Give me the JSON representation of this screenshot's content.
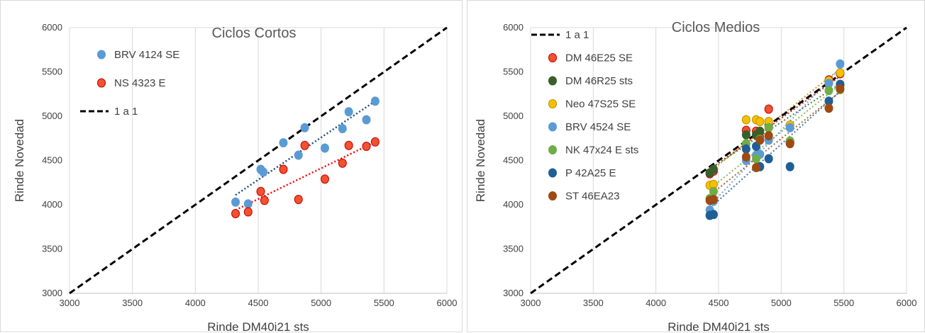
{
  "chart_data": [
    {
      "type": "scatter",
      "title": "Ciclos Cortos",
      "xlabel": "Rinde DM40i21 sts",
      "ylabel": "Rinde Novedad",
      "xlim": [
        3000,
        6000
      ],
      "ylim": [
        3000,
        6000
      ],
      "xticks": [
        3000,
        3500,
        4000,
        4500,
        5000,
        5500,
        6000
      ],
      "yticks": [
        3000,
        3500,
        4000,
        4500,
        5000,
        5500,
        6000
      ],
      "grid": "vertical",
      "legend_position": "top-left",
      "series": [
        {
          "name": "BRV 4124 SE",
          "color": "#5B9BD5",
          "stroke": "#5B9BD5",
          "points": [
            [
              4320,
              4030
            ],
            [
              4420,
              4010
            ],
            [
              4520,
              4400
            ],
            [
              4540,
              4370
            ],
            [
              4700,
              4700
            ],
            [
              4820,
              4560
            ],
            [
              4870,
              4870
            ],
            [
              5030,
              4640
            ],
            [
              5170,
              4860
            ],
            [
              5220,
              5050
            ],
            [
              5360,
              4960
            ],
            [
              5430,
              5170
            ]
          ],
          "trend": {
            "x": [
              4320,
              5430
            ],
            "y": [
              4110,
              5170
            ],
            "color": "#1F4E79"
          }
        },
        {
          "name": "NS 4323 E",
          "color": "#F4512F",
          "stroke": "#C00000",
          "points": [
            [
              4320,
              3900
            ],
            [
              4420,
              3920
            ],
            [
              4520,
              4150
            ],
            [
              4550,
              4050
            ],
            [
              4700,
              4400
            ],
            [
              4820,
              4060
            ],
            [
              4870,
              4670
            ],
            [
              5030,
              4290
            ],
            [
              5170,
              4470
            ],
            [
              5220,
              4670
            ],
            [
              5360,
              4660
            ],
            [
              5430,
              4710
            ]
          ],
          "trend": {
            "x": [
              4320,
              5430
            ],
            "y": [
              3940,
              4710
            ],
            "color": "#FF0000"
          }
        },
        {
          "name": "1 a 1",
          "type": "line",
          "style": "dashed",
          "color": "#000000",
          "points": [
            [
              3000,
              3000
            ],
            [
              6000,
              6000
            ]
          ]
        }
      ]
    },
    {
      "type": "scatter",
      "title": "Ciclos Medios",
      "xlabel": "Rinde DM40i21 sts",
      "ylabel": "Rinde Novedad",
      "xlim": [
        3000,
        6000
      ],
      "ylim": [
        3000,
        6000
      ],
      "xticks": [
        3000,
        3500,
        4000,
        4500,
        5000,
        5500,
        6000
      ],
      "yticks": [
        3000,
        3500,
        4000,
        4500,
        5000,
        5500,
        6000
      ],
      "grid": "vertical",
      "legend_position": "top-left",
      "series": [
        {
          "name": "1 a 1",
          "type": "line",
          "style": "dashed",
          "color": "#000000",
          "points": [
            [
              3000,
              3000
            ],
            [
              6000,
              6000
            ]
          ]
        },
        {
          "name": "DM 46E25 SE",
          "color": "#F4512F",
          "stroke": "#C00000",
          "points": [
            [
              4430,
              4350
            ],
            [
              4460,
              4380
            ],
            [
              4720,
              4840
            ],
            [
              4800,
              4830
            ],
            [
              4830,
              4760
            ],
            [
              4900,
              5080
            ],
            [
              5070,
              4700
            ],
            [
              5380,
              5410
            ],
            [
              5470,
              5480
            ]
          ]
        },
        {
          "name": "DM 46R25 sts",
          "color": "#3A5F2A",
          "stroke": "#3A5F2A",
          "points": [
            [
              4430,
              4360
            ],
            [
              4460,
              4400
            ],
            [
              4720,
              4790
            ],
            [
              4800,
              4790
            ],
            [
              4830,
              4830
            ],
            [
              4900,
              4900
            ],
            [
              5070,
              4710
            ],
            [
              5380,
              5390
            ],
            [
              5470,
              5350
            ]
          ]
        },
        {
          "name": "Neo 47S25 SE",
          "color": "#F5C000",
          "stroke": "#C09000",
          "points": [
            [
              4430,
              4220
            ],
            [
              4460,
              4230
            ],
            [
              4720,
              4960
            ],
            [
              4800,
              4960
            ],
            [
              4830,
              4940
            ],
            [
              4900,
              4940
            ],
            [
              5070,
              4900
            ],
            [
              5380,
              5400
            ],
            [
              5470,
              5490
            ]
          ]
        },
        {
          "name": "BRV 4524 SE",
          "color": "#5B9BD5",
          "stroke": "#5B9BD5",
          "points": [
            [
              4430,
              3940
            ],
            [
              4460,
              4040
            ],
            [
              4720,
              4500
            ],
            [
              4800,
              4560
            ],
            [
              4830,
              4570
            ],
            [
              4900,
              4730
            ],
            [
              5070,
              4870
            ],
            [
              5380,
              5370
            ],
            [
              5470,
              5590
            ]
          ]
        },
        {
          "name": "NK 47x24 E sts",
          "color": "#70AD47",
          "stroke": "#70AD47",
          "points": [
            [
              4430,
              4070
            ],
            [
              4460,
              4150
            ],
            [
              4720,
              4690
            ],
            [
              4800,
              4520
            ],
            [
              4830,
              4740
            ],
            [
              4900,
              4870
            ],
            [
              5070,
              4720
            ],
            [
              5380,
              5290
            ],
            [
              5470,
              5300
            ]
          ]
        },
        {
          "name": "P 42A25 E",
          "color": "#1F5F96",
          "stroke": "#1F5F96",
          "points": [
            [
              4430,
              3880
            ],
            [
              4460,
              3890
            ],
            [
              4720,
              4630
            ],
            [
              4800,
              4660
            ],
            [
              4830,
              4430
            ],
            [
              4900,
              4520
            ],
            [
              5070,
              4430
            ],
            [
              5380,
              5170
            ],
            [
              5470,
              5360
            ]
          ]
        },
        {
          "name": "ST 46EA23",
          "color": "#9E4A12",
          "stroke": "#9E4A12",
          "points": [
            [
              4430,
              4050
            ],
            [
              4460,
              4060
            ],
            [
              4720,
              4540
            ],
            [
              4800,
              4420
            ],
            [
              4830,
              4730
            ],
            [
              4900,
              4780
            ],
            [
              5070,
              4690
            ],
            [
              5380,
              5090
            ],
            [
              5470,
              5310
            ]
          ]
        }
      ]
    }
  ]
}
